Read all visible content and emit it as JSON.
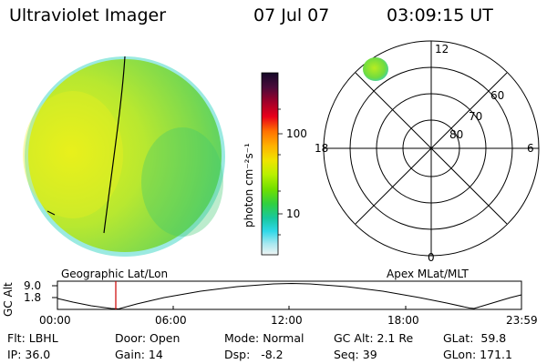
{
  "header": {
    "title": "Ultraviolet Imager",
    "date": "07 Jul 07",
    "time": "03:09:15 UT"
  },
  "colorbar": {
    "label": "photon cm⁻²s⁻¹",
    "ticks": [
      "100",
      "10"
    ],
    "colors": [
      "#1a0a2e",
      "#5a0a3a",
      "#a0002a",
      "#e8001a",
      "#ff6a00",
      "#ffa800",
      "#f0e000",
      "#b8f000",
      "#70e000",
      "#30d040",
      "#10c8a0",
      "#20d8e8",
      "#90e8f0",
      "#e8f0f0"
    ]
  },
  "polar": {
    "mlt_labels": {
      "top": "12",
      "bottom": "0",
      "left": "18",
      "right": "6"
    },
    "lat_labels": [
      "60",
      "70",
      "80"
    ]
  },
  "altitude_panel": {
    "axis_title": "GC Alt",
    "y_ticks": [
      "9.0",
      "1.8"
    ],
    "left_caption": "Geographic Lat/Lon",
    "right_caption": "Apex MLat/MLT",
    "x_ticks": [
      "00:00",
      "06:00",
      "12:00",
      "18:00",
      "23:59"
    ],
    "marker_color": "#cc0000"
  },
  "info": {
    "flt": "Flt: LBHL",
    "ip": "IP: 36.0",
    "door": "Door: Open",
    "gain": "Gain: 14",
    "mode": "Mode: Normal",
    "dsp": "Dsp:   -8.2",
    "gc_alt": "GC Alt: 2.1 Re",
    "seq": "Seq: 39",
    "glat": "GLat:  59.8",
    "glon": "GLon: 171.1"
  }
}
